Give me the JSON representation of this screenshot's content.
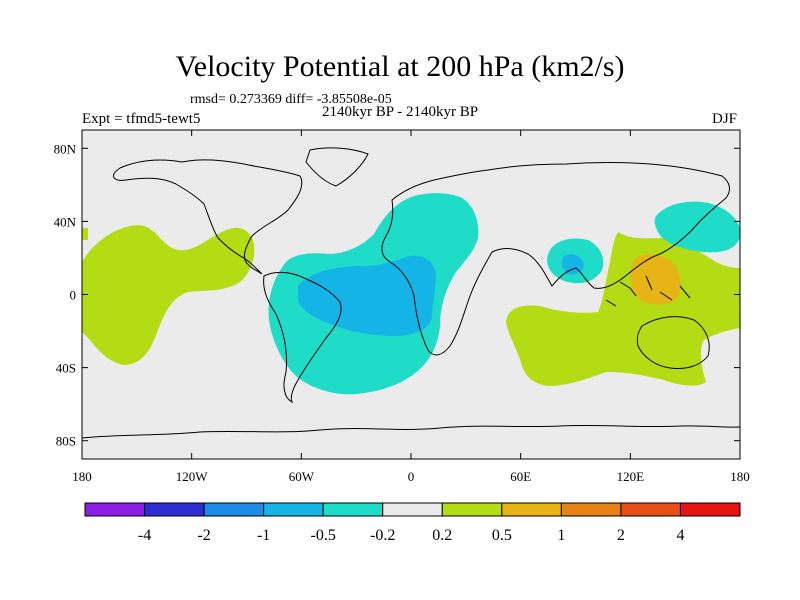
{
  "title": "Velocity Potential at 200 hPa (km2/s)",
  "stats": "rmsd= 0.273369 diff= -3.85508e-05",
  "experiment": "Expt = tfmd5-tewt5",
  "period": "2140kyr BP - 2140kyr BP",
  "season": "DJF",
  "map": {
    "lon_range": [
      -180,
      180
    ],
    "lat_range": [
      -90,
      90
    ],
    "lon_ticks": [
      {
        "value": -180,
        "label": "180"
      },
      {
        "value": -120,
        "label": "120W"
      },
      {
        "value": -60,
        "label": "60W"
      },
      {
        "value": 0,
        "label": "0"
      },
      {
        "value": 60,
        "label": "60E"
      },
      {
        "value": 120,
        "label": "120E"
      },
      {
        "value": 180,
        "label": "180"
      }
    ],
    "lat_ticks": [
      {
        "value": 80,
        "label": "80N"
      },
      {
        "value": 40,
        "label": "40N"
      },
      {
        "value": 0,
        "label": "0"
      },
      {
        "value": -40,
        "label": "40S"
      },
      {
        "value": -80,
        "label": "80S"
      }
    ],
    "background_color": "#ebebeb"
  },
  "colorbar": {
    "colors": [
      "#8c1ee6",
      "#2d2dd2",
      "#1e8ce6",
      "#14b4e6",
      "#1edcc8",
      "#ebebeb",
      "#b4dc14",
      "#e6b414",
      "#e68214",
      "#e65014",
      "#e61414"
    ],
    "labels": [
      "-4",
      "-2",
      "-1",
      "-0.5",
      "-0.2",
      "0.2",
      "0.5",
      "1",
      "2",
      "4"
    ]
  }
}
